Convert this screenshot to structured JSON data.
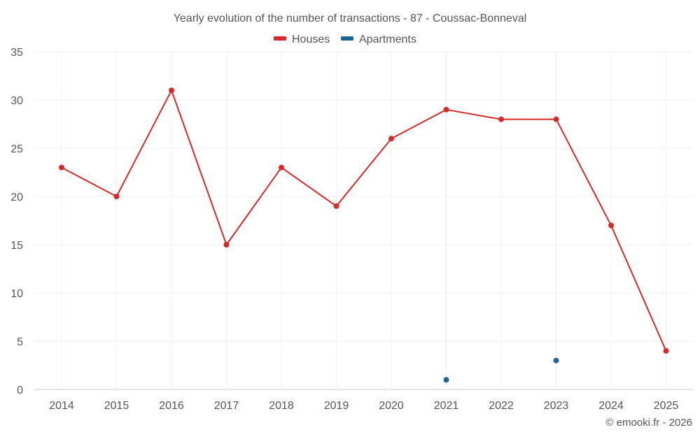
{
  "chart_data": {
    "type": "line",
    "title": "Yearly evolution of the number of transactions - 87 - Coussac-Bonneval",
    "categories": [
      "2014",
      "2015",
      "2016",
      "2017",
      "2018",
      "2019",
      "2020",
      "2021",
      "2022",
      "2023",
      "2024",
      "2025"
    ],
    "series": [
      {
        "name": "Houses",
        "color": "#d42a2a",
        "values": [
          23,
          20,
          31,
          15,
          23,
          19,
          26,
          29,
          28,
          28,
          17,
          4
        ]
      },
      {
        "name": "Apartments",
        "color": "#1f6596",
        "values": [
          null,
          null,
          null,
          null,
          null,
          null,
          null,
          1,
          null,
          3,
          null,
          null
        ]
      }
    ],
    "ylim": [
      0,
      35
    ],
    "yticks": [
      0,
      5,
      10,
      15,
      20,
      25,
      30,
      35
    ],
    "xlabel": "",
    "ylabel": "",
    "grid": true,
    "legend_position": "top-center"
  },
  "credit": "© emooki.fr - 2026"
}
